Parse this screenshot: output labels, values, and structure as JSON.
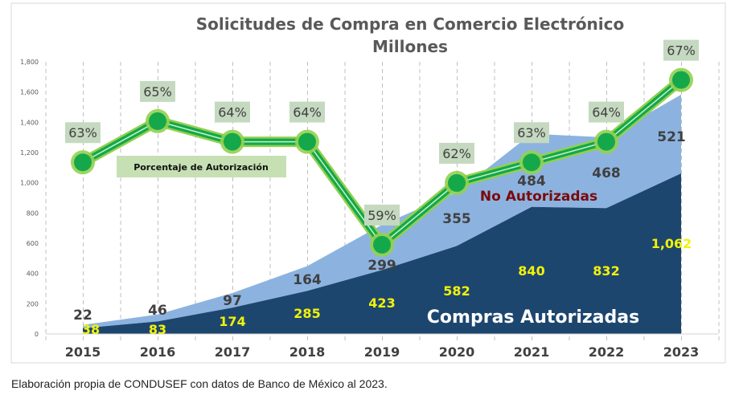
{
  "chart_data": {
    "type": "area",
    "stacked": true,
    "title": "Solicitudes de Compra en Comercio Electrónico",
    "subtitle": "Millones",
    "categories": [
      "2015",
      "2016",
      "2017",
      "2018",
      "2019",
      "2020",
      "2021",
      "2022",
      "2023"
    ],
    "ylim": [
      0,
      1800
    ],
    "yticks": [
      "0",
      "200",
      "400",
      "600",
      "800",
      "1,000",
      "1,200",
      "1,400",
      "1,600",
      "1,800"
    ],
    "grid": "vertical dashed",
    "series": [
      {
        "name": "Compras Autorizadas",
        "values": [
          38,
          83,
          174,
          285,
          423,
          582,
          840,
          832,
          1062
        ],
        "labels": [
          "38",
          "83",
          "174",
          "285",
          "423",
          "582",
          "840",
          "832",
          "1,062"
        ],
        "color": "#1d466e",
        "label_color": "#f2f20a"
      },
      {
        "name": "No Autorizadas",
        "values": [
          22,
          46,
          97,
          164,
          299,
          355,
          484,
          468,
          521
        ],
        "labels": [
          "22",
          "46",
          "97",
          "164",
          "299",
          "355",
          "484",
          "468",
          "521"
        ],
        "color": "#8cb3e0",
        "label_color": "#404040",
        "name_color": "#7a0a0a"
      }
    ],
    "line_series": {
      "name": "Porcentaje de Autorización",
      "values": [
        63,
        65,
        64,
        64,
        59,
        62,
        63,
        64,
        67
      ],
      "labels": [
        "63%",
        "65%",
        "64%",
        "64%",
        "59%",
        "62%",
        "63%",
        "64%",
        "67%"
      ],
      "color": "#14a84a"
    }
  },
  "caption": "Elaboración propia de CONDUSEF con datos de Banco de México al 2023."
}
